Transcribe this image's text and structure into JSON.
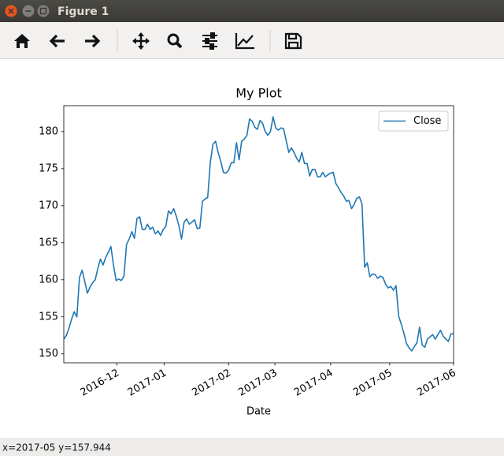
{
  "window": {
    "title": "Figure 1",
    "status": "x=2017-05 y=157.944"
  },
  "chart_data": {
    "type": "line",
    "title": "My Plot",
    "x_label": "Date",
    "series": [
      {
        "name": "Close",
        "color": "#1f77b4",
        "values": [
          152.0,
          152.5,
          153.5,
          154.7,
          155.7,
          155.0,
          160.3,
          161.3,
          159.8,
          158.2,
          159.0,
          159.6,
          160.0,
          161.5,
          162.8,
          162.0,
          163.0,
          163.7,
          164.5,
          162.0,
          159.9,
          160.1,
          159.9,
          160.5,
          164.8,
          165.5,
          166.5,
          165.6,
          168.3,
          168.5,
          166.8,
          166.8,
          167.5,
          166.8,
          167.1,
          166.2,
          166.6,
          166.0,
          166.8,
          167.2,
          169.3,
          168.9,
          169.6,
          168.6,
          167.3,
          165.5,
          167.8,
          168.2,
          167.5,
          167.8,
          168.1,
          166.9,
          167.0,
          170.6,
          170.9,
          171.1,
          175.8,
          178.3,
          178.7,
          177.2,
          176.0,
          174.5,
          174.4,
          174.8,
          175.8,
          175.8,
          178.5,
          176.2,
          178.7,
          179.0,
          179.5,
          181.7,
          181.4,
          180.6,
          180.3,
          181.5,
          181.1,
          180.0,
          179.5,
          180.0,
          182.0,
          180.5,
          180.2,
          180.5,
          180.4,
          178.8,
          177.2,
          177.8,
          177.2,
          176.4,
          175.9,
          177.2,
          175.7,
          175.7,
          174.0,
          174.9,
          174.9,
          173.9,
          173.9,
          174.5,
          173.9,
          174.2,
          174.4,
          174.5,
          173.0,
          172.4,
          171.8,
          171.3,
          170.6,
          170.7,
          169.6,
          170.2,
          171.0,
          171.2,
          170.2,
          161.7,
          162.3,
          160.4,
          160.8,
          160.7,
          160.2,
          160.5,
          160.3,
          159.4,
          158.9,
          159.1,
          158.6,
          159.2,
          155.1,
          154.0,
          152.8,
          151.4,
          150.8,
          150.4,
          151.0,
          151.5,
          153.6,
          151.2,
          150.9,
          152.0,
          152.3,
          152.6,
          152.0,
          152.6,
          153.2,
          152.4,
          152.0,
          151.7,
          152.7,
          152.7
        ]
      }
    ],
    "xlim": [
      0,
      149
    ],
    "xticks": [
      {
        "value": 20.3,
        "label": "2016-12"
      },
      {
        "value": 38.4,
        "label": "2017-01"
      },
      {
        "value": 63,
        "label": "2017-02"
      },
      {
        "value": 80.7,
        "label": "2017-03"
      },
      {
        "value": 102,
        "label": "2017-04"
      },
      {
        "value": 124.6,
        "label": "2017-05"
      },
      {
        "value": 149,
        "label": "2017-06"
      }
    ],
    "ylim": [
      148.8,
      183.5
    ],
    "yticks": [
      150,
      155,
      160,
      165,
      170,
      175,
      180
    ],
    "legend": "upper right",
    "grid": false
  }
}
